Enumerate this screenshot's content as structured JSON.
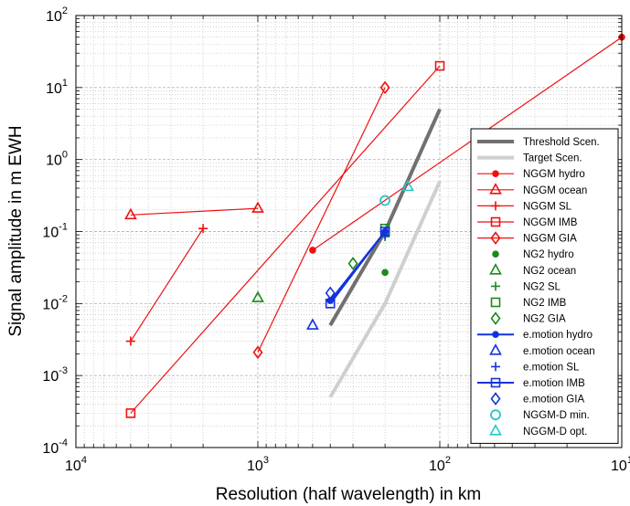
{
  "chart_data": {
    "type": "line",
    "title": "",
    "xlabel": "Resolution (half wavelength) in km",
    "ylabel": "Signal amplitude in m EWH",
    "xscale": "log",
    "yscale": "log",
    "x_reversed": true,
    "xlim": [
      10000,
      10
    ],
    "ylim": [
      0.0001,
      100
    ],
    "grid": true,
    "legend_position": "right",
    "x_ticks": [
      {
        "base": "10",
        "exp": "4",
        "value": 10000
      },
      {
        "base": "10",
        "exp": "3",
        "value": 1000
      },
      {
        "base": "10",
        "exp": "2",
        "value": 100
      },
      {
        "base": "10",
        "exp": "1",
        "value": 10
      }
    ],
    "y_ticks": [
      {
        "base": "10",
        "exp": "-4",
        "value": 0.0001
      },
      {
        "base": "10",
        "exp": "-3",
        "value": 0.001
      },
      {
        "base": "10",
        "exp": "-2",
        "value": 0.01
      },
      {
        "base": "10",
        "exp": "-1",
        "value": 0.1
      },
      {
        "base": "10",
        "exp": "0",
        "value": 1
      },
      {
        "base": "10",
        "exp": "1",
        "value": 10
      },
      {
        "base": "10",
        "exp": "2",
        "value": 100
      }
    ],
    "series": [
      {
        "name": "Threshold Scen.",
        "color": "#707070",
        "line": true,
        "lineWidth": 4,
        "marker": "none",
        "points": [
          [
            400,
            0.005
          ],
          [
            200,
            0.1
          ],
          [
            100,
            5
          ]
        ]
      },
      {
        "name": "Target Scen.",
        "color": "#cfcfcf",
        "line": true,
        "lineWidth": 4,
        "marker": "none",
        "points": [
          [
            400,
            0.0005
          ],
          [
            200,
            0.01
          ],
          [
            100,
            0.5
          ]
        ]
      },
      {
        "name": "NGGM hydro",
        "color": "#ee1111",
        "line": true,
        "lineWidth": 1.2,
        "marker": "dot",
        "points": [
          [
            500,
            0.055
          ],
          [
            10,
            50
          ]
        ]
      },
      {
        "name": "NGGM ocean",
        "color": "#ee1111",
        "line": true,
        "lineWidth": 1.2,
        "marker": "triangle",
        "points": [
          [
            5000,
            0.17
          ],
          [
            1000,
            0.21
          ]
        ]
      },
      {
        "name": "NGGM SL",
        "color": "#ee1111",
        "line": true,
        "lineWidth": 1.2,
        "marker": "plus",
        "points": [
          [
            5000,
            0.003
          ],
          [
            2000,
            0.11
          ]
        ]
      },
      {
        "name": "NGGM IMB",
        "color": "#ee1111",
        "line": true,
        "lineWidth": 1.2,
        "marker": "square",
        "points": [
          [
            5000,
            0.0003
          ],
          [
            100,
            20
          ]
        ]
      },
      {
        "name": "NGGM GIA",
        "color": "#ee1111",
        "line": true,
        "lineWidth": 1.2,
        "marker": "diamond",
        "points": [
          [
            1000,
            0.0021
          ],
          [
            200,
            10
          ]
        ]
      },
      {
        "name": "NG2 hydro",
        "color": "#1a8a1a",
        "line": false,
        "marker": "dot",
        "points": [
          [
            200,
            0.027
          ]
        ]
      },
      {
        "name": "NG2 ocean",
        "color": "#1a8a1a",
        "line": false,
        "marker": "triangle",
        "points": [
          [
            1000,
            0.012
          ]
        ]
      },
      {
        "name": "NG2 SL",
        "color": "#1a8a1a",
        "line": false,
        "marker": "plus",
        "points": [
          [
            200,
            0.085
          ]
        ]
      },
      {
        "name": "NG2 IMB",
        "color": "#1a8a1a",
        "line": false,
        "marker": "square",
        "points": [
          [
            200,
            0.11
          ]
        ]
      },
      {
        "name": "NG2 GIA",
        "color": "#1a8a1a",
        "line": false,
        "marker": "diamond",
        "points": [
          [
            300,
            0.036
          ]
        ]
      },
      {
        "name": "e.motion hydro",
        "color": "#1133dd",
        "line": true,
        "lineWidth": 2,
        "marker": "dot",
        "points": [
          [
            400,
            0.011
          ],
          [
            200,
            0.1
          ]
        ]
      },
      {
        "name": "e.motion ocean",
        "color": "#1133dd",
        "line": false,
        "marker": "triangle",
        "points": [
          [
            500,
            0.005
          ]
        ]
      },
      {
        "name": "e.motion SL",
        "color": "#1133dd",
        "line": false,
        "marker": "plus",
        "points": [
          [
            200,
            0.09
          ]
        ]
      },
      {
        "name": "e.motion IMB",
        "color": "#1133dd",
        "line": true,
        "lineWidth": 2,
        "marker": "square",
        "points": [
          [
            400,
            0.01
          ],
          [
            200,
            0.1
          ]
        ]
      },
      {
        "name": "e.motion GIA",
        "color": "#1133dd",
        "line": false,
        "marker": "diamond",
        "points": [
          [
            400,
            0.014
          ]
        ]
      },
      {
        "name": "NGGM-D min.",
        "color": "#22c5cc",
        "line": false,
        "marker": "circle",
        "points": [
          [
            200,
            0.27
          ]
        ]
      },
      {
        "name": "NGGM-D opt.",
        "color": "#22c5cc",
        "line": false,
        "marker": "triangle",
        "points": [
          [
            150,
            0.42
          ]
        ]
      }
    ]
  }
}
